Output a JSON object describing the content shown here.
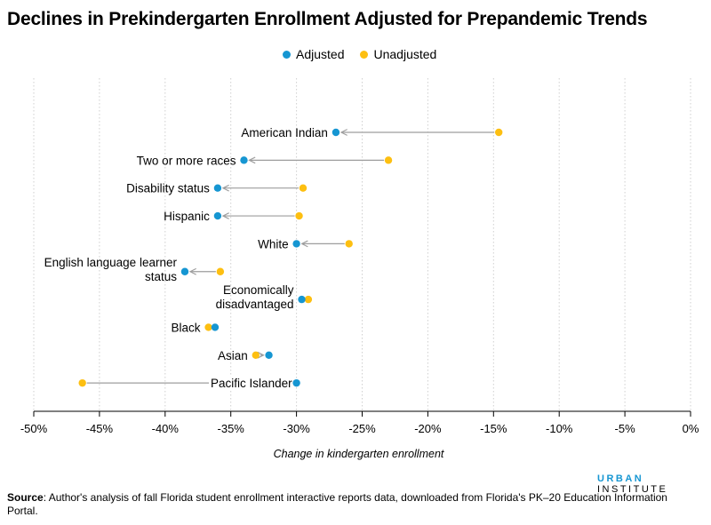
{
  "header": {
    "title": "Declines in Prekindergarten Enrollment Adjusted for Prepandemic Trends"
  },
  "legend": [
    {
      "label": "Adjusted",
      "color": "#1696d2"
    },
    {
      "label": "Unadjusted",
      "color": "#fdbf11"
    }
  ],
  "footer": {
    "brand_primary": "URBAN",
    "brand_secondary": "INSTITUTE",
    "source_label": "Source",
    "source_text": ": Author's analysis of fall Florida student enrollment interactive reports data, downloaded from Florida's PK–20 Education Information Portal."
  },
  "chart_data": {
    "type": "scatter",
    "subtype": "dumbbell",
    "title": "Declines in Prekindergarten Enrollment Adjusted for Prepandemic Trends",
    "xlabel": "Change in kindergarten enrollment",
    "ylabel": "",
    "xlim": [
      -50,
      0
    ],
    "x_ticks": [
      -50,
      -45,
      -40,
      -35,
      -30,
      -25,
      -20,
      -15,
      -10,
      -5,
      0
    ],
    "x_tick_labels": [
      "-50%",
      "-45%",
      "-40%",
      "-35%",
      "-30%",
      "-25%",
      "-20%",
      "-15%",
      "-10%",
      "-5%",
      "0%"
    ],
    "grid": "vertical dotted",
    "legend_position": "top-center",
    "colors": {
      "adjusted": "#1696d2",
      "unadjusted": "#fdbf11",
      "arrow": "#9d9d9d"
    },
    "categories": [
      {
        "label": [
          "American Indian"
        ],
        "adjusted": -27.0,
        "unadjusted": -14.6
      },
      {
        "label": [
          "Two or more races"
        ],
        "adjusted": -34.0,
        "unadjusted": -23.0
      },
      {
        "label": [
          "Disability status"
        ],
        "adjusted": -36.0,
        "unadjusted": -29.5
      },
      {
        "label": [
          "Hispanic"
        ],
        "adjusted": -36.0,
        "unadjusted": -29.8
      },
      {
        "label": [
          "White"
        ],
        "adjusted": -30.0,
        "unadjusted": -26.0
      },
      {
        "label": [
          "English language learner",
          "status"
        ],
        "adjusted": -38.5,
        "unadjusted": -35.8
      },
      {
        "label": [
          "Economically",
          "disadvantaged"
        ],
        "adjusted": -29.6,
        "unadjusted": -29.1
      },
      {
        "label": [
          "Black"
        ],
        "adjusted": -36.2,
        "unadjusted": -36.7
      },
      {
        "label": [
          "Asian"
        ],
        "adjusted": -32.1,
        "unadjusted": -33.1
      },
      {
        "label": [
          "Pacific Islander"
        ],
        "adjusted": -30.0,
        "unadjusted": -46.3
      }
    ]
  }
}
